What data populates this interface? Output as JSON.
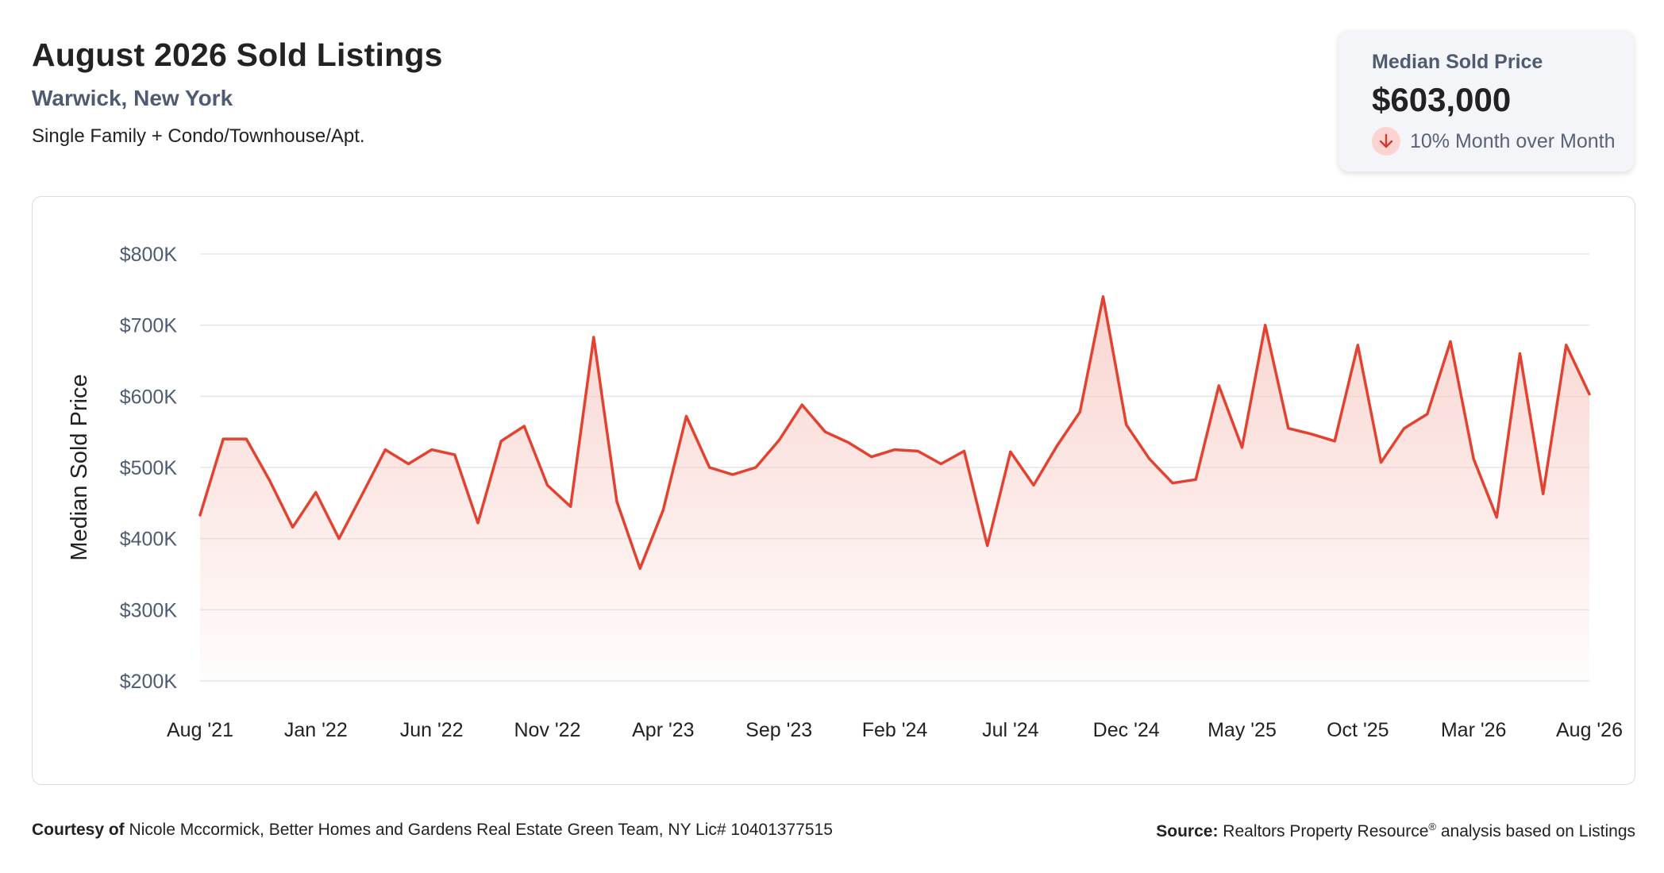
{
  "header": {
    "title": "August 2026 Sold Listings",
    "location": "Warwick, New York",
    "property_types": "Single Family + Condo/Townhouse/Apt."
  },
  "stat_card": {
    "label": "Median Sold Price",
    "value": "$603,000",
    "change_text": "10% Month over Month",
    "change_direction": "down",
    "change_icon": "arrow-down-icon"
  },
  "footer": {
    "courtesy_label": "Courtesy of",
    "courtesy_text": "Nicole Mccormick, Better Homes and Gardens Real Estate Green Team, NY Lic# 10401377515",
    "source_label": "Source:",
    "source_text": "Realtors Property Resource",
    "source_sup": "®",
    "source_suffix": "analysis based on Listings"
  },
  "colors": {
    "line": "#e2422f",
    "fill": "#f7c7c0",
    "grid": "#e5e5e5",
    "label": "#4f5b71"
  },
  "chart_data": {
    "type": "area",
    "ylabel": "Median Sold Price",
    "ylim": [
      200000,
      800000
    ],
    "y_ticks": [
      800000,
      700000,
      600000,
      500000,
      400000,
      300000,
      200000
    ],
    "y_tick_labels": [
      "$800K",
      "$700K",
      "$600K",
      "$500K",
      "$400K",
      "$300K",
      "$200K"
    ],
    "x_tick_labels": [
      "Aug '21",
      "Jan '22",
      "Jun '22",
      "Nov '22",
      "Apr '23",
      "Sep '23",
      "Feb '24",
      "Jul '24",
      "Dec '24",
      "May '25",
      "Oct '25",
      "Mar '26",
      "Aug '26"
    ],
    "grid": true,
    "series": [
      {
        "values": [
          433000,
          540000,
          540000,
          482000,
          416000,
          465000,
          400000,
          462000,
          525000,
          505000,
          525000,
          518000,
          422000,
          537000,
          558000,
          475000,
          445000,
          683000,
          452000,
          358000,
          440000,
          572000,
          500000,
          490000,
          500000,
          538000,
          588000,
          550000,
          535000,
          515000,
          525000,
          523000,
          505000,
          523000,
          390000,
          522000,
          475000,
          530000,
          578000,
          740000,
          560000,
          512000,
          478000,
          483000,
          615000,
          528000,
          700000,
          555000,
          547000,
          537000,
          672000,
          507000,
          555000,
          575000,
          677000,
          512000,
          430000,
          660000,
          463000,
          672000,
          603000
        ]
      }
    ]
  }
}
